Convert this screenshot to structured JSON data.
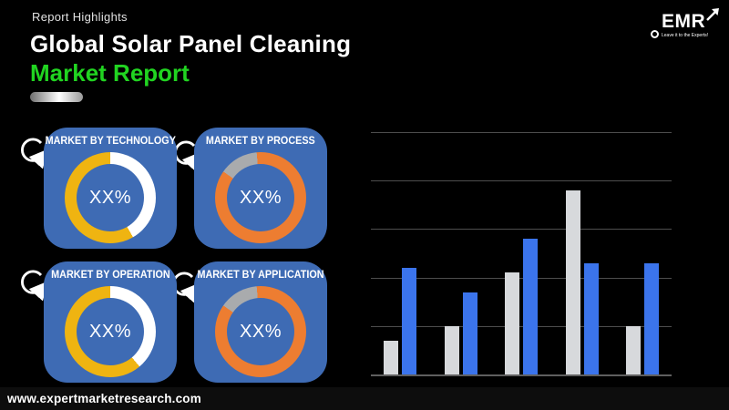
{
  "header": {
    "eyebrow": "Report Highlights",
    "title_line1": "Global Solar Panel Cleaning",
    "title_line2": "Market Report"
  },
  "logo": {
    "text": "EMR",
    "tagline": "Leave it to the Experts!"
  },
  "footer": {
    "url": "www.expertmarketresearch.com"
  },
  "cards": [
    {
      "title": "MARKET BY TECHNOLOGY",
      "value": "XX%",
      "ring": {
        "from": 0,
        "segments": [
          {
            "color": "#FFFFFF",
            "deg": 150
          },
          {
            "color": "#EFB411",
            "deg": 210
          }
        ]
      }
    },
    {
      "title": "MARKET BY PROCESS",
      "value": "XX%",
      "ring": {
        "from": -55,
        "segments": [
          {
            "color": "#A9ABAD",
            "deg": 50
          },
          {
            "color": "#ED7D31",
            "deg": 310
          }
        ]
      }
    },
    {
      "title": "MARKET BY OPERATION",
      "value": "XX%",
      "ring": {
        "from": 0,
        "segments": [
          {
            "color": "#FFFFFF",
            "deg": 140
          },
          {
            "color": "#EFB411",
            "deg": 220
          }
        ]
      }
    },
    {
      "title": "MARKET BY APPLICATION",
      "value": "XX%",
      "ring": {
        "from": -55,
        "segments": [
          {
            "color": "#A9ABAD",
            "deg": 50
          },
          {
            "color": "#ED7D31",
            "deg": 310
          }
        ]
      }
    }
  ],
  "chart_data": {
    "type": "bar",
    "title": "",
    "xlabel": "",
    "ylabel": "",
    "categories": [
      "",
      "",
      "",
      "",
      ""
    ],
    "series": [
      {
        "name": "gray",
        "color": "#D7D9DC",
        "values": [
          0.7,
          1.0,
          2.1,
          3.8,
          1.0
        ]
      },
      {
        "name": "blue",
        "color": "#3B74EC",
        "values": [
          2.2,
          1.7,
          2.8,
          2.3,
          2.3
        ]
      }
    ],
    "ylim": [
      0,
      5
    ],
    "gridlines": 6,
    "grid": true,
    "legend": "none"
  },
  "colors": {
    "background": "#000000",
    "card_blue": "#3E6BB4",
    "donut_yellow": "#EFB411",
    "donut_orange": "#ED7D31",
    "donut_gray": "#A9ABAD",
    "bar_blue": "#3B74EC",
    "bar_gray": "#D7D9DC",
    "accent_green": "#21D421",
    "gridline": "#4D4D4D"
  }
}
